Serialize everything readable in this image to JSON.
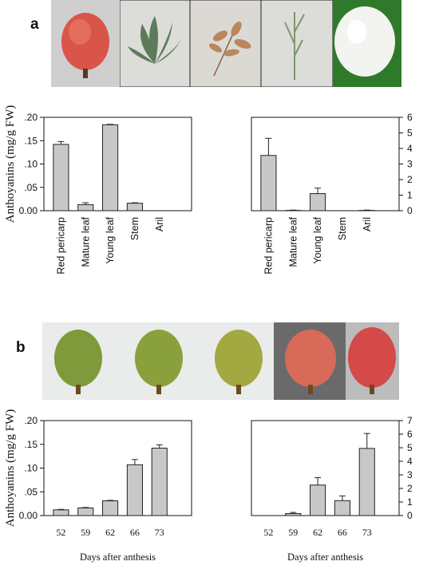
{
  "panel_a_label": "a",
  "panel_b_label": "b",
  "photos_a": [
    {
      "name": "red-pericarp-photo",
      "icon": "lychee-fruit-icon",
      "bg": "#cfcfcf"
    },
    {
      "name": "mature-leaf-photo",
      "icon": "mature-leaf-icon",
      "bg": "#dcdcd8"
    },
    {
      "name": "young-leaf-photo",
      "icon": "young-leaf-icon",
      "bg": "#dbd9d4"
    },
    {
      "name": "stem-photo",
      "icon": "stem-icon",
      "bg": "#dcdcd9"
    },
    {
      "name": "aril-photo",
      "icon": "aril-icon",
      "bg": "#2f7a2a"
    }
  ],
  "photos_b": [
    {
      "name": "fruit-52-days-photo",
      "color": "#7f9a3a",
      "bg": "#e9ecea"
    },
    {
      "name": "fruit-59-days-photo",
      "color": "#8aa03c",
      "bg": "#e9ecea"
    },
    {
      "name": "fruit-62-days-photo",
      "color": "#a3a840",
      "bg": "#e9ecea"
    },
    {
      "name": "fruit-66-days-photo",
      "color": "#d86a5a",
      "bg": "#6a6a6a"
    },
    {
      "name": "fruit-73-days-photo",
      "color": "#d44a48",
      "bg": "#bcbcbc"
    }
  ],
  "chart_data": [
    {
      "type": "bar",
      "panel": "a-left",
      "categories": [
        "Red pericarp",
        "Mature leaf",
        "Young leaf",
        "Stem",
        "Aril"
      ],
      "values": [
        0.142,
        0.013,
        0.184,
        0.016,
        0.0
      ],
      "errors": [
        0.006,
        0.004,
        0.001,
        0.001,
        0.0
      ],
      "ylabel": "Anthoyanins (mg/g FW)",
      "ylim": [
        0,
        0.2
      ],
      "yticks": [
        ".20",
        ".15",
        ".10",
        ".05",
        "0.00"
      ],
      "axis_side": "left",
      "bar_color": "#c8c8c8"
    },
    {
      "type": "bar",
      "panel": "a-right",
      "categories": [
        "Red pericarp",
        "Mature leaf",
        "Young leaf",
        "Stem",
        "Aril"
      ],
      "values": [
        3.55,
        0.02,
        1.1,
        0.0,
        0.02
      ],
      "errors": [
        1.1,
        0.02,
        0.35,
        0.0,
        0.02
      ],
      "ylim": [
        0,
        6
      ],
      "yticks": [
        "6",
        "5",
        "4",
        "3",
        "2",
        "1",
        "0"
      ],
      "axis_side": "right",
      "bar_color": "#c8c8c8"
    },
    {
      "type": "bar",
      "panel": "b-left",
      "categories": [
        "52",
        "59",
        "62",
        "66",
        "73"
      ],
      "values": [
        0.012,
        0.016,
        0.031,
        0.107,
        0.142
      ],
      "errors": [
        0.001,
        0.001,
        0.001,
        0.011,
        0.007
      ],
      "ylabel": "Anthoyanins (mg/g FW)",
      "xlabel": "Days after anthesis",
      "ylim": [
        0,
        0.2
      ],
      "yticks": [
        ".20",
        ".15",
        ".10",
        ".05",
        "0.00"
      ],
      "axis_side": "left",
      "bar_color": "#c8c8c8"
    },
    {
      "type": "bar",
      "panel": "b-right",
      "categories": [
        "52",
        "59",
        "62",
        "66",
        "73"
      ],
      "values": [
        0.0,
        0.15,
        2.25,
        1.1,
        4.95
      ],
      "errors": [
        0.0,
        0.08,
        0.55,
        0.35,
        1.1
      ],
      "xlabel": "Days after anthesis",
      "ylim": [
        0,
        7
      ],
      "yticks": [
        "7",
        "6",
        "5",
        "4",
        "3",
        "2",
        "1",
        "0"
      ],
      "axis_side": "right",
      "bar_color": "#c8c8c8"
    }
  ]
}
